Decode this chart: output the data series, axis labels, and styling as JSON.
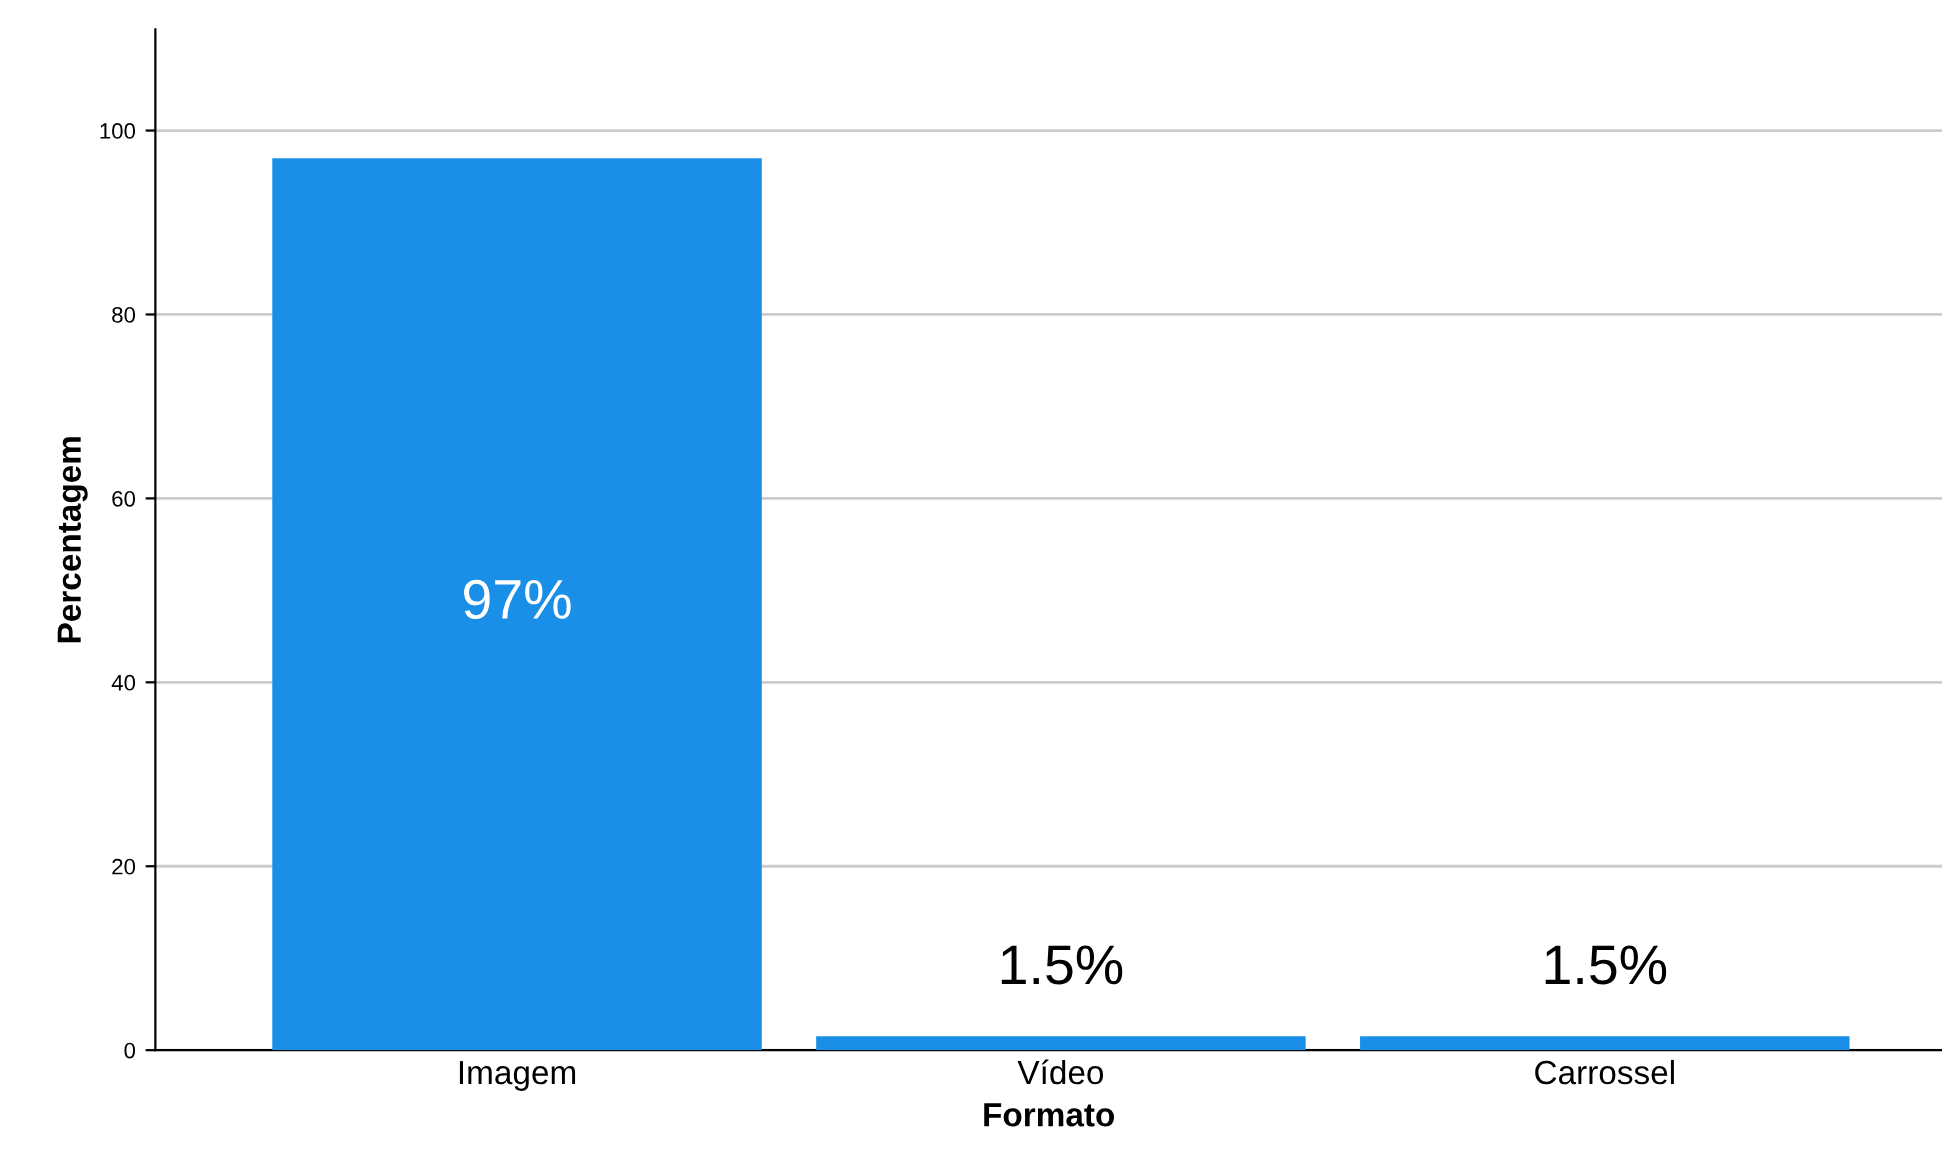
{
  "chart_data": {
    "type": "bar",
    "xlabel": "Formato",
    "ylabel": "Percentagem",
    "categories": [
      "Imagem",
      "Vídeo",
      "Carrossel"
    ],
    "values": [
      97,
      1.5,
      1.5
    ],
    "value_labels": [
      "97%",
      "1.5%",
      "1.5%"
    ],
    "color": "#1a8fe8",
    "ylim": [
      0,
      111
    ],
    "yticks": [
      0,
      20,
      40,
      60,
      80,
      100
    ],
    "grid": "y",
    "legend": false
  }
}
